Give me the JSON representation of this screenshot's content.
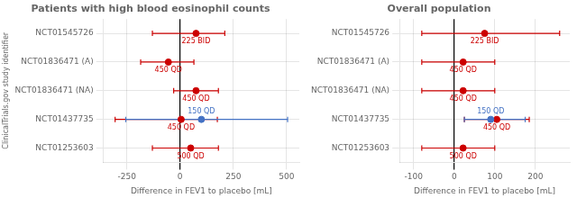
{
  "chart_data": [
    {
      "type": "scatter",
      "title": "Patients with high blood eosinophil counts",
      "xlabel": "Difference in FEV1 to placebo [mL]",
      "ylabel": "ClinicalTrials.gov study identifier",
      "categories": [
        "NCT01253603",
        "NCT01437735",
        "NCT01836471 (NA)",
        "NCT01836471 (A)",
        "NCT01545726"
      ],
      "xlim": [
        -360,
        560
      ],
      "xticks": [
        -250,
        0,
        250,
        500
      ],
      "grid": true,
      "points": [
        {
          "category": "NCT01545726",
          "x": 75,
          "lo": -130,
          "hi": 210,
          "color": "#cc0000",
          "label": "225 BID"
        },
        {
          "category": "NCT01836471 (A)",
          "x": -55,
          "lo": -185,
          "hi": 65,
          "color": "#cc0000",
          "label": "450 QD"
        },
        {
          "category": "NCT01836471 (NA)",
          "x": 75,
          "lo": -30,
          "hi": 180,
          "color": "#cc0000",
          "label": "450 QD"
        },
        {
          "category": "NCT01437735",
          "x": 5,
          "lo": -305,
          "hi": 175,
          "color": "#cc0000",
          "label": "450 QD"
        },
        {
          "category": "NCT01437735",
          "x": 100,
          "lo": -255,
          "hi": 505,
          "color": "#4472c4",
          "label": "150 QD"
        },
        {
          "category": "NCT01253603",
          "x": 50,
          "lo": -130,
          "hi": 180,
          "color": "#cc0000",
          "label": "500 QD"
        }
      ]
    },
    {
      "type": "scatter",
      "title": "Overall population",
      "xlabel": "Difference in FEV1 to placebo [mL]",
      "categories": [
        "NCT01253603",
        "NCT01437735",
        "NCT01836471 (NA)",
        "NCT01836471 (A)",
        "NCT01545726"
      ],
      "xlim": [
        -135,
        285
      ],
      "xticks": [
        -100,
        0,
        100,
        200
      ],
      "grid": true,
      "points": [
        {
          "category": "NCT01545726",
          "x": 75,
          "lo": -80,
          "hi": 260,
          "color": "#cc0000",
          "label": "225 BID"
        },
        {
          "category": "NCT01836471 (A)",
          "x": 22,
          "lo": -80,
          "hi": 100,
          "color": "#cc0000",
          "label": "450 QD"
        },
        {
          "category": "NCT01836471 (NA)",
          "x": 22,
          "lo": -80,
          "hi": 100,
          "color": "#cc0000",
          "label": "450 QD"
        },
        {
          "category": "NCT01437735",
          "x": 105,
          "lo": 25,
          "hi": 185,
          "color": "#cc0000",
          "label": "450 QD"
        },
        {
          "category": "NCT01437735",
          "x": 90,
          "lo": 25,
          "hi": 175,
          "color": "#4472c4",
          "label": "150 QD"
        },
        {
          "category": "NCT01253603",
          "x": 22,
          "lo": -80,
          "hi": 100,
          "color": "#cc0000",
          "label": "500 QD"
        }
      ]
    }
  ]
}
